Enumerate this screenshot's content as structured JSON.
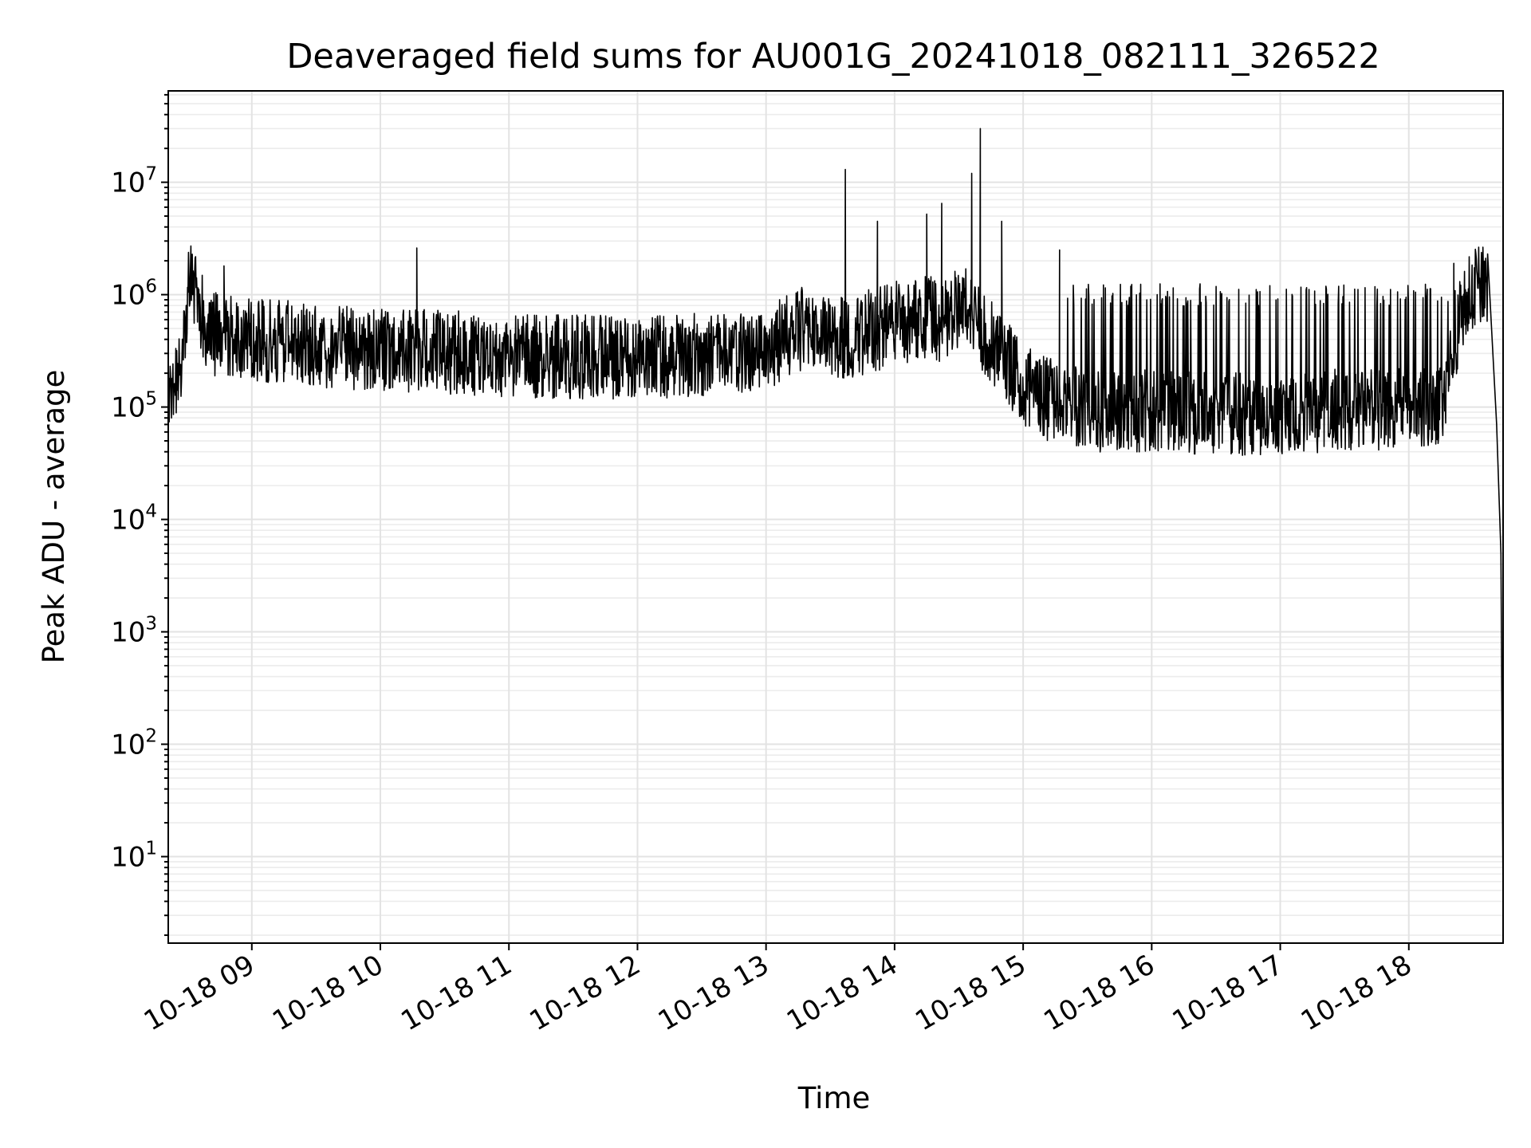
{
  "chart_data": {
    "type": "line",
    "title": "Deaveraged field sums for AU001G_20241018_082111_326522",
    "xlabel": "Time",
    "ylabel": "Peak ADU - average",
    "x_axis": {
      "type": "time",
      "min": "2024-10-18 08:21",
      "max": "2024-10-18 18:44"
    },
    "y_axis": {
      "scale": "log",
      "min": 1.7,
      "max": 65000000
    },
    "x_ticks": [
      {
        "time": "2024-10-18 09:00",
        "label": "10-18 09"
      },
      {
        "time": "2024-10-18 10:00",
        "label": "10-18 10"
      },
      {
        "time": "2024-10-18 11:00",
        "label": "10-18 11"
      },
      {
        "time": "2024-10-18 12:00",
        "label": "10-18 12"
      },
      {
        "time": "2024-10-18 13:00",
        "label": "10-18 13"
      },
      {
        "time": "2024-10-18 14:00",
        "label": "10-18 14"
      },
      {
        "time": "2024-10-18 15:00",
        "label": "10-18 15"
      },
      {
        "time": "2024-10-18 16:00",
        "label": "10-18 16"
      },
      {
        "time": "2024-10-18 17:00",
        "label": "10-18 17"
      },
      {
        "time": "2024-10-18 18:00",
        "label": "10-18 18"
      }
    ],
    "y_ticks": [
      {
        "value": 10,
        "base": "10",
        "exp": "1"
      },
      {
        "value": 100,
        "base": "10",
        "exp": "2"
      },
      {
        "value": 1000,
        "base": "10",
        "exp": "3"
      },
      {
        "value": 10000,
        "base": "10",
        "exp": "4"
      },
      {
        "value": 100000,
        "base": "10",
        "exp": "5"
      },
      {
        "value": 1000000,
        "base": "10",
        "exp": "6"
      },
      {
        "value": 10000000,
        "base": "10",
        "exp": "7"
      }
    ],
    "grid": {
      "major": true,
      "minor_y": true
    },
    "line_color": "#000000",
    "series": [
      {
        "x": [
          "2024-10-18 08:21",
          "2024-10-18 08:28",
          "2024-10-18 08:31",
          "2024-10-18 08:34",
          "2024-10-18 08:40",
          "2024-10-18 08:50",
          "2024-10-18 09:00",
          "2024-10-18 09:15",
          "2024-10-18 09:30",
          "2024-10-18 10:00",
          "2024-10-18 10:17",
          "2024-10-18 10:30",
          "2024-10-18 11:00",
          "2024-10-18 11:30",
          "2024-10-18 12:00",
          "2024-10-18 12:30",
          "2024-10-18 13:00",
          "2024-10-18 13:15",
          "2024-10-18 13:30",
          "2024-10-18 13:37",
          "2024-10-18 13:45",
          "2024-10-18 14:00",
          "2024-10-18 14:15",
          "2024-10-18 14:21",
          "2024-10-18 14:30",
          "2024-10-18 14:36",
          "2024-10-18 14:40",
          "2024-10-18 14:50",
          "2024-10-18 15:00",
          "2024-10-18 15:15",
          "2024-10-18 15:30",
          "2024-10-18 16:00",
          "2024-10-18 16:30",
          "2024-10-18 17:00",
          "2024-10-18 17:30",
          "2024-10-18 18:00",
          "2024-10-18 18:15",
          "2024-10-18 18:25",
          "2024-10-18 18:32",
          "2024-10-18 18:37",
          "2024-10-18 18:41",
          "2024-10-18 18:43",
          "2024-10-18 18:44"
        ],
        "y": [
          100000,
          300000,
          1400000,
          1000000,
          450000,
          420000,
          400000,
          380000,
          350000,
          330000,
          320000,
          310000,
          290000,
          280000,
          280000,
          290000,
          330000,
          500000,
          450000,
          420000,
          450000,
          550000,
          650000,
          600000,
          750000,
          850000,
          500000,
          300000,
          150000,
          110000,
          95000,
          90000,
          85000,
          90000,
          95000,
          100000,
          110000,
          800000,
          1200000,
          1100000,
          70000,
          5000,
          4
        ]
      }
    ]
  }
}
